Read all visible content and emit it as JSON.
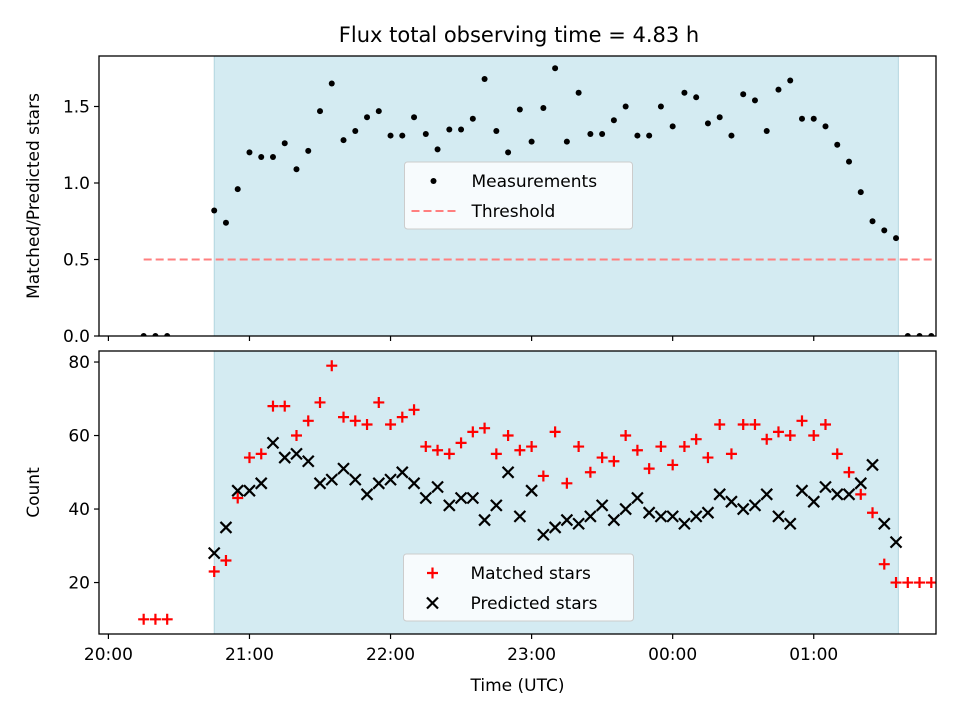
{
  "title": "Flux total observing time = 4.83 h",
  "chart_data": [
    {
      "type": "scatter",
      "ylabel": "Matched/Predicted stars",
      "xlim": [
        "19:56",
        "01:52"
      ],
      "ylim": [
        0,
        1.83
      ],
      "yticks": [
        {
          "v": 0.0,
          "label": "0.0"
        },
        {
          "v": 0.5,
          "label": "0.5"
        },
        {
          "v": 1.0,
          "label": "1.0"
        },
        {
          "v": 1.5,
          "label": "1.5"
        }
      ],
      "x_tick_marks": [
        "20:00",
        "21:00",
        "22:00",
        "23:00",
        "00:00",
        "01:00"
      ],
      "shaded_region": {
        "x": [
          "20:45",
          "01:36"
        ],
        "color": "#add8e6"
      },
      "legend": {
        "location": "center",
        "entries": [
          {
            "label": "Measurements",
            "marker": "dot",
            "color": "#000000"
          },
          {
            "label": "Threshold",
            "marker": "dashed-line",
            "color": "#ff7f7f"
          }
        ]
      },
      "threshold": {
        "y": 0.5,
        "x": [
          "20:15",
          "02:21"
        ]
      },
      "series": [
        {
          "name": "Measurements",
          "points": [
            [
              "20:15",
              0
            ],
            [
              "20:20",
              0
            ],
            [
              "20:25",
              0
            ],
            [
              "20:45",
              0.82
            ],
            [
              "20:50",
              0.74
            ],
            [
              "20:55",
              0.96
            ],
            [
              "21:00",
              1.2
            ],
            [
              "21:05",
              1.17
            ],
            [
              "21:10",
              1.17
            ],
            [
              "21:15",
              1.26
            ],
            [
              "21:20",
              1.09
            ],
            [
              "21:25",
              1.21
            ],
            [
              "21:30",
              1.47
            ],
            [
              "21:35",
              1.65
            ],
            [
              "21:40",
              1.28
            ],
            [
              "21:45",
              1.34
            ],
            [
              "21:50",
              1.43
            ],
            [
              "21:55",
              1.47
            ],
            [
              "22:00",
              1.31
            ],
            [
              "22:05",
              1.31
            ],
            [
              "22:10",
              1.43
            ],
            [
              "22:15",
              1.32
            ],
            [
              "22:20",
              1.22
            ],
            [
              "22:25",
              1.35
            ],
            [
              "22:30",
              1.35
            ],
            [
              "22:35",
              1.42
            ],
            [
              "22:40",
              1.68
            ],
            [
              "22:45",
              1.34
            ],
            [
              "22:50",
              1.2
            ],
            [
              "22:55",
              1.48
            ],
            [
              "23:00",
              1.27
            ],
            [
              "23:05",
              1.49
            ],
            [
              "23:10",
              1.75
            ],
            [
              "23:15",
              1.27
            ],
            [
              "23:20",
              1.59
            ],
            [
              "23:25",
              1.32
            ],
            [
              "23:30",
              1.32
            ],
            [
              "23:35",
              1.41
            ],
            [
              "23:40",
              1.5
            ],
            [
              "23:45",
              1.31
            ],
            [
              "23:50",
              1.31
            ],
            [
              "23:55",
              1.5
            ],
            [
              "00:00",
              1.37
            ],
            [
              "00:05",
              1.59
            ],
            [
              "00:10",
              1.56
            ],
            [
              "00:15",
              1.39
            ],
            [
              "00:20",
              1.43
            ],
            [
              "00:25",
              1.31
            ],
            [
              "00:30",
              1.58
            ],
            [
              "00:35",
              1.54
            ],
            [
              "00:40",
              1.34
            ],
            [
              "00:45",
              1.61
            ],
            [
              "00:50",
              1.67
            ],
            [
              "00:55",
              1.42
            ],
            [
              "01:00",
              1.42
            ],
            [
              "01:05",
              1.37
            ],
            [
              "01:10",
              1.25
            ],
            [
              "01:15",
              1.14
            ],
            [
              "01:20",
              0.94
            ],
            [
              "01:25",
              0.75
            ],
            [
              "01:30",
              0.69
            ],
            [
              "01:35",
              0.64
            ],
            [
              "01:40",
              0
            ],
            [
              "01:45",
              0
            ],
            [
              "01:50",
              0
            ]
          ]
        }
      ]
    },
    {
      "type": "scatter",
      "xlabel": "Time (UTC)",
      "ylabel": "Count",
      "xlim": [
        "19:56",
        "01:52"
      ],
      "ylim": [
        6,
        83
      ],
      "yticks": [
        {
          "v": 20,
          "label": "20"
        },
        {
          "v": 40,
          "label": "40"
        },
        {
          "v": 60,
          "label": "60"
        },
        {
          "v": 80,
          "label": "80"
        }
      ],
      "xticks": [
        {
          "v": "20:00",
          "label": "20:00"
        },
        {
          "v": "21:00",
          "label": "21:00"
        },
        {
          "v": "22:00",
          "label": "22:00"
        },
        {
          "v": "23:00",
          "label": "23:00"
        },
        {
          "v": "00:00",
          "label": "00:00"
        },
        {
          "v": "01:00",
          "label": "01:00"
        }
      ],
      "shaded_region": {
        "x": [
          "20:45",
          "01:36"
        ],
        "color": "#add8e6"
      },
      "legend": {
        "location": "lower center",
        "entries": [
          {
            "label": "Matched stars",
            "marker": "plus",
            "color": "#ff0000"
          },
          {
            "label": "Predicted stars",
            "marker": "x",
            "color": "#000000"
          }
        ]
      },
      "series": [
        {
          "name": "Matched stars",
          "marker": "plus",
          "color": "#ff0000",
          "points": [
            [
              "20:15",
              10
            ],
            [
              "20:20",
              10
            ],
            [
              "20:25",
              10
            ],
            [
              "20:45",
              23
            ],
            [
              "20:50",
              26
            ],
            [
              "20:55",
              43
            ],
            [
              "21:00",
              54
            ],
            [
              "21:05",
              55
            ],
            [
              "21:10",
              68
            ],
            [
              "21:15",
              68
            ],
            [
              "21:20",
              60
            ],
            [
              "21:25",
              64
            ],
            [
              "21:30",
              69
            ],
            [
              "21:35",
              79
            ],
            [
              "21:40",
              65
            ],
            [
              "21:45",
              64
            ],
            [
              "21:50",
              63
            ],
            [
              "21:55",
              69
            ],
            [
              "22:00",
              63
            ],
            [
              "22:05",
              65
            ],
            [
              "22:10",
              67
            ],
            [
              "22:15",
              57
            ],
            [
              "22:20",
              56
            ],
            [
              "22:25",
              55
            ],
            [
              "22:30",
              58
            ],
            [
              "22:35",
              61
            ],
            [
              "22:40",
              62
            ],
            [
              "22:45",
              55
            ],
            [
              "22:50",
              60
            ],
            [
              "22:55",
              56
            ],
            [
              "23:00",
              57
            ],
            [
              "23:05",
              49
            ],
            [
              "23:10",
              61
            ],
            [
              "23:15",
              47
            ],
            [
              "23:20",
              57
            ],
            [
              "23:25",
              50
            ],
            [
              "23:30",
              54
            ],
            [
              "23:35",
              53
            ],
            [
              "23:40",
              60
            ],
            [
              "23:45",
              56
            ],
            [
              "23:50",
              51
            ],
            [
              "23:55",
              57
            ],
            [
              "00:00",
              52
            ],
            [
              "00:05",
              57
            ],
            [
              "00:10",
              59
            ],
            [
              "00:15",
              54
            ],
            [
              "00:20",
              63
            ],
            [
              "00:25",
              55
            ],
            [
              "00:30",
              63
            ],
            [
              "00:35",
              63
            ],
            [
              "00:40",
              59
            ],
            [
              "00:45",
              61
            ],
            [
              "00:50",
              60
            ],
            [
              "00:55",
              64
            ],
            [
              "01:00",
              60
            ],
            [
              "01:05",
              63
            ],
            [
              "01:10",
              55
            ],
            [
              "01:15",
              50
            ],
            [
              "01:20",
              44
            ],
            [
              "01:25",
              39
            ],
            [
              "01:30",
              25
            ],
            [
              "01:35",
              20
            ],
            [
              "01:40",
              20
            ],
            [
              "01:45",
              20
            ],
            [
              "01:50",
              20
            ]
          ]
        },
        {
          "name": "Predicted stars",
          "marker": "x",
          "color": "#000000",
          "points": [
            [
              "20:45",
              28
            ],
            [
              "20:50",
              35
            ],
            [
              "20:55",
              45
            ],
            [
              "21:00",
              45
            ],
            [
              "21:05",
              47
            ],
            [
              "21:10",
              58
            ],
            [
              "21:15",
              54
            ],
            [
              "21:20",
              55
            ],
            [
              "21:25",
              53
            ],
            [
              "21:30",
              47
            ],
            [
              "21:35",
              48
            ],
            [
              "21:40",
              51
            ],
            [
              "21:45",
              48
            ],
            [
              "21:50",
              44
            ],
            [
              "21:55",
              47
            ],
            [
              "22:00",
              48
            ],
            [
              "22:05",
              50
            ],
            [
              "22:10",
              47
            ],
            [
              "22:15",
              43
            ],
            [
              "22:20",
              46
            ],
            [
              "22:25",
              41
            ],
            [
              "22:30",
              43
            ],
            [
              "22:35",
              43
            ],
            [
              "22:40",
              37
            ],
            [
              "22:45",
              41
            ],
            [
              "22:50",
              50
            ],
            [
              "22:55",
              38
            ],
            [
              "23:00",
              45
            ],
            [
              "23:05",
              33
            ],
            [
              "23:10",
              35
            ],
            [
              "23:15",
              37
            ],
            [
              "23:20",
              36
            ],
            [
              "23:25",
              38
            ],
            [
              "23:30",
              41
            ],
            [
              "23:35",
              37
            ],
            [
              "23:40",
              40
            ],
            [
              "23:45",
              43
            ],
            [
              "23:50",
              39
            ],
            [
              "23:55",
              38
            ],
            [
              "00:00",
              38
            ],
            [
              "00:05",
              36
            ],
            [
              "00:10",
              38
            ],
            [
              "00:15",
              39
            ],
            [
              "00:20",
              44
            ],
            [
              "00:25",
              42
            ],
            [
              "00:30",
              40
            ],
            [
              "00:35",
              41
            ],
            [
              "00:40",
              44
            ],
            [
              "00:45",
              38
            ],
            [
              "00:50",
              36
            ],
            [
              "00:55",
              45
            ],
            [
              "01:00",
              42
            ],
            [
              "01:05",
              46
            ],
            [
              "01:10",
              44
            ],
            [
              "01:15",
              44
            ],
            [
              "01:20",
              47
            ],
            [
              "01:25",
              52
            ],
            [
              "01:30",
              36
            ],
            [
              "01:35",
              31
            ]
          ]
        }
      ]
    }
  ]
}
